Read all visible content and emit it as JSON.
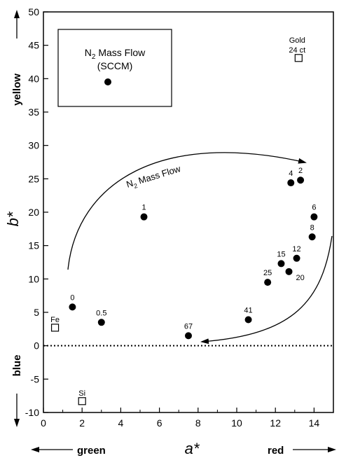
{
  "chart_data": {
    "type": "scatter",
    "title": "",
    "xlabel": "a*",
    "ylabel": "b*",
    "xlim": [
      0,
      15
    ],
    "ylim": [
      -10,
      50
    ],
    "x_ticks": [
      0,
      2,
      4,
      6,
      8,
      10,
      12,
      14
    ],
    "y_ticks": [
      -10,
      -5,
      0,
      5,
      10,
      15,
      20,
      25,
      30,
      35,
      40,
      45,
      50
    ],
    "axis_directions": {
      "x_negative": "green",
      "x_positive": "red",
      "y_negative": "blue",
      "y_positive": "yellow"
    },
    "legend": {
      "position": "top-left",
      "text_main": "N",
      "text_sub": "2",
      "text_rest": " Mass Flow",
      "text_unit": "(SCCM)"
    },
    "annotation": {
      "main": "N",
      "sub": "2",
      "rest": " Mass Flow"
    },
    "reference_line": {
      "y": 0,
      "style": "dotted"
    },
    "series": [
      {
        "marker": "filled-circle",
        "points": [
          {
            "label": "0",
            "x": 1.5,
            "y": 5.8
          },
          {
            "label": "0.5",
            "x": 3.0,
            "y": 3.5
          },
          {
            "label": "1",
            "x": 5.2,
            "y": 19.3
          },
          {
            "label": "67",
            "x": 7.5,
            "y": 1.5
          },
          {
            "label": "41",
            "x": 10.6,
            "y": 3.9
          },
          {
            "label": "25",
            "x": 11.6,
            "y": 9.5
          },
          {
            "label": "15",
            "x": 12.3,
            "y": 12.3
          },
          {
            "label": "20",
            "x": 12.7,
            "y": 11.1
          },
          {
            "label": "12",
            "x": 13.1,
            "y": 13.1
          },
          {
            "label": "4",
            "x": 12.8,
            "y": 24.4
          },
          {
            "label": "2",
            "x": 13.3,
            "y": 24.8
          },
          {
            "label": "6",
            "x": 14.0,
            "y": 19.3
          },
          {
            "label": "8",
            "x": 13.9,
            "y": 16.3
          }
        ]
      },
      {
        "marker": "open-square",
        "points": [
          {
            "label": "Fe",
            "x": 0.6,
            "y": 2.7
          },
          {
            "label": "Si",
            "x": 2.0,
            "y": -8.3
          },
          {
            "label": "Gold",
            "label2": "24 ct",
            "x": 13.2,
            "y": 43.1
          }
        ]
      }
    ]
  }
}
